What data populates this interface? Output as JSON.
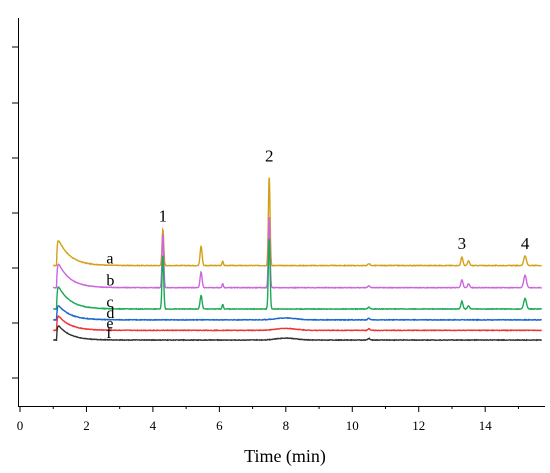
{
  "chart_data": {
    "type": "line",
    "xlabel": "Time (min)",
    "ylabel": "",
    "xlim": [
      0,
      15.8
    ],
    "ylim": [
      0,
      10
    ],
    "x_ticks": [
      0,
      2,
      4,
      6,
      8,
      10,
      12,
      14
    ],
    "x_tick_labels": [
      "0",
      "2",
      "4",
      "6",
      "8",
      "10",
      "12",
      "14"
    ],
    "grid": false,
    "series": [
      {
        "name": "a",
        "color": "#D4A017",
        "baseline": 3.62,
        "peaks": [
          [
            1.15,
            0.8,
            0.07
          ],
          [
            4.3,
            0.95,
            0.025
          ],
          [
            5.45,
            0.5,
            0.03
          ],
          [
            6.1,
            0.12,
            0.02
          ],
          [
            7.5,
            2.3,
            0.025
          ],
          [
            10.5,
            0.05,
            0.03
          ],
          [
            13.3,
            0.22,
            0.03
          ],
          [
            13.5,
            0.12,
            0.03
          ],
          [
            15.2,
            0.25,
            0.04
          ]
        ]
      },
      {
        "name": "b",
        "color": "#CC66DD",
        "baseline": 3.05,
        "peaks": [
          [
            1.15,
            0.75,
            0.07
          ],
          [
            4.3,
            1.4,
            0.025
          ],
          [
            5.45,
            0.4,
            0.03
          ],
          [
            6.1,
            0.1,
            0.02
          ],
          [
            7.5,
            1.85,
            0.025
          ],
          [
            10.5,
            0.05,
            0.03
          ],
          [
            13.3,
            0.2,
            0.03
          ],
          [
            13.5,
            0.1,
            0.03
          ],
          [
            15.2,
            0.32,
            0.04
          ]
        ]
      },
      {
        "name": "c",
        "color": "#1AAA55",
        "baseline": 2.5,
        "peaks": [
          [
            1.15,
            0.7,
            0.07
          ],
          [
            4.3,
            1.4,
            0.025
          ],
          [
            5.45,
            0.35,
            0.03
          ],
          [
            6.1,
            0.12,
            0.02
          ],
          [
            7.5,
            1.85,
            0.025
          ],
          [
            10.5,
            0.05,
            0.03
          ],
          [
            13.3,
            0.2,
            0.03
          ],
          [
            13.5,
            0.08,
            0.03
          ],
          [
            15.2,
            0.27,
            0.04
          ]
        ]
      },
      {
        "name": "d",
        "color": "#1A66CC",
        "baseline": 2.22,
        "peaks": [
          [
            1.15,
            0.45,
            0.07
          ],
          [
            8.0,
            0.05,
            0.3
          ],
          [
            10.5,
            0.04,
            0.03
          ]
        ]
      },
      {
        "name": "e",
        "color": "#EE3333",
        "baseline": 1.95,
        "peaks": [
          [
            1.15,
            0.45,
            0.07
          ],
          [
            8.0,
            0.05,
            0.3
          ],
          [
            10.5,
            0.04,
            0.03
          ]
        ]
      },
      {
        "name": "f",
        "color": "#333333",
        "baseline": 1.7,
        "peaks": [
          [
            1.15,
            0.45,
            0.07
          ],
          [
            8.0,
            0.05,
            0.3
          ],
          [
            10.5,
            0.04,
            0.03
          ]
        ]
      }
    ],
    "annotations": [
      {
        "text": "1",
        "x": 4.3,
        "y": 4.75
      },
      {
        "text": "2",
        "x": 7.5,
        "y": 6.3
      },
      {
        "text": "3",
        "x": 13.3,
        "y": 4.05
      },
      {
        "text": "4",
        "x": 15.2,
        "y": 4.05
      }
    ]
  }
}
